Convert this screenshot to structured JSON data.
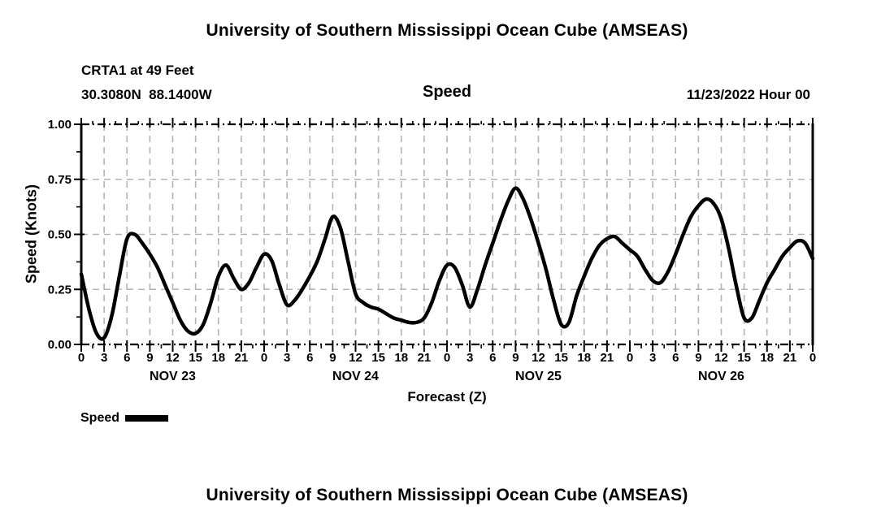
{
  "header": {
    "title": "University of Southern Mississippi Ocean Cube (AMSEAS)",
    "station": "CRTA1 at 49 Feet",
    "coordinates": "30.3080N  88.1400W",
    "plot_title": "Speed",
    "run_date": "11/23/2022 Hour 00"
  },
  "footer": {
    "title": "University of Southern Mississippi Ocean Cube (AMSEAS)"
  },
  "legend": {
    "label": "Speed",
    "swatch_color": "#000000"
  },
  "chart_data": {
    "type": "line",
    "title": "Speed",
    "xlabel": "Forecast (Z)",
    "ylabel": "Speed (Knots)",
    "ylim": [
      0,
      1
    ],
    "ytick_values": [
      0,
      0.25,
      0.5,
      0.75,
      1
    ],
    "ytick_labels": [
      "0.00",
      "0.25",
      "0.50",
      "0.75",
      "1.00"
    ],
    "ytick_minor_values": [
      0.125,
      0.375,
      0.625,
      0.875
    ],
    "x_range_hours": [
      0,
      96
    ],
    "xtick_step_hours": 3,
    "xtick_minor_step_hours": 1.5,
    "xtick_labels": [
      "0",
      "3",
      "6",
      "9",
      "12",
      "15",
      "18",
      "21",
      "0",
      "3",
      "6",
      "9",
      "12",
      "15",
      "18",
      "21",
      "0",
      "3",
      "6",
      "9",
      "12",
      "15",
      "18",
      "21",
      "0",
      "3",
      "6",
      "9",
      "12",
      "15",
      "18",
      "21",
      "0"
    ],
    "day_labels": [
      {
        "label": "NOV 23",
        "center_hour": 12
      },
      {
        "label": "NOV 24",
        "center_hour": 36
      },
      {
        "label": "NOV 25",
        "center_hour": 60
      },
      {
        "label": "NOV 26",
        "center_hour": 84
      }
    ],
    "grid": true,
    "grid_color": "#b3b3b3",
    "line_color": "#000000",
    "legend_position": "bottom-left",
    "series": [
      {
        "name": "Speed",
        "x_hours": [
          0,
          1,
          2,
          3,
          4,
          5,
          6,
          7,
          8,
          9,
          10,
          11,
          12,
          13,
          14,
          15,
          16,
          17,
          18,
          19,
          20,
          21,
          22,
          23,
          24,
          25,
          26,
          27,
          28,
          29,
          30,
          31,
          32,
          33,
          34,
          35,
          36,
          37,
          38,
          39,
          40,
          41,
          42,
          43,
          44,
          45,
          46,
          47,
          48,
          49,
          50,
          51,
          52,
          53,
          54,
          55,
          56,
          57,
          58,
          59,
          60,
          61,
          62,
          63,
          64,
          65,
          66,
          67,
          68,
          69,
          70,
          71,
          72,
          73,
          74,
          75,
          76,
          77,
          78,
          79,
          80,
          81,
          82,
          83,
          84,
          85,
          86,
          87,
          88,
          89,
          90,
          91,
          92,
          93,
          94,
          95,
          96
        ],
        "values": [
          0.32,
          0.16,
          0.05,
          0.03,
          0.13,
          0.31,
          0.48,
          0.5,
          0.46,
          0.41,
          0.35,
          0.27,
          0.19,
          0.11,
          0.06,
          0.05,
          0.09,
          0.19,
          0.31,
          0.36,
          0.3,
          0.25,
          0.28,
          0.35,
          0.41,
          0.38,
          0.27,
          0.18,
          0.2,
          0.25,
          0.31,
          0.38,
          0.48,
          0.58,
          0.53,
          0.38,
          0.23,
          0.19,
          0.17,
          0.16,
          0.14,
          0.12,
          0.11,
          0.1,
          0.1,
          0.12,
          0.19,
          0.29,
          0.36,
          0.35,
          0.27,
          0.17,
          0.25,
          0.36,
          0.46,
          0.56,
          0.65,
          0.71,
          0.66,
          0.57,
          0.46,
          0.34,
          0.2,
          0.09,
          0.1,
          0.22,
          0.31,
          0.39,
          0.45,
          0.48,
          0.49,
          0.46,
          0.43,
          0.4,
          0.34,
          0.29,
          0.28,
          0.33,
          0.41,
          0.5,
          0.58,
          0.63,
          0.66,
          0.64,
          0.57,
          0.43,
          0.26,
          0.12,
          0.12,
          0.2,
          0.28,
          0.34,
          0.4,
          0.44,
          0.47,
          0.46,
          0.39
        ]
      }
    ]
  }
}
